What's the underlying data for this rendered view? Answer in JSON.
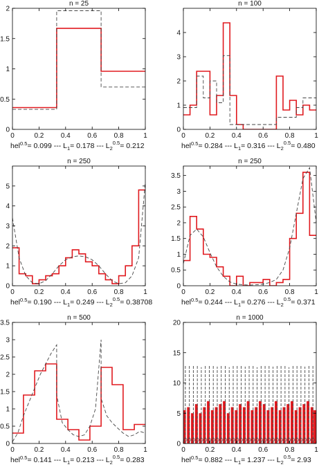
{
  "colors": {
    "histogram": "#e0191e",
    "density": "#444444",
    "axes": "#000000"
  },
  "chart_data": [
    {
      "type": "line",
      "title": "n = 25",
      "caption": {
        "a": "hel",
        "a_sup": "0.5",
        "b": "= 0.099 --- L",
        "b_sub": "1",
        "c": "= 0.178 --- L",
        "c_sub": "2",
        "c_sup": "0.5",
        "d": "= 0.212"
      },
      "xlim": [
        0,
        1
      ],
      "ylim": [
        0,
        2
      ],
      "xticks": [
        0,
        0.2,
        0.4,
        0.6,
        0.8,
        1
      ],
      "xtick_labels": [
        "0",
        "0.2",
        "0.4",
        "0.6",
        "0.8",
        "1"
      ],
      "yticks": [
        0,
        0.5,
        1,
        1.5,
        2
      ],
      "ytick_labels": [
        "0",
        "0.5",
        "1",
        "1.5",
        "2"
      ],
      "series": [
        {
          "style": "histogram-red",
          "x": [
            0,
            0.333,
            0.333,
            0.667,
            0.667,
            1
          ],
          "y": [
            0.36,
            0.36,
            1.67,
            1.67,
            0.96,
            0.96
          ]
        },
        {
          "style": "density-dashed",
          "x": [
            0,
            0.333,
            0.333,
            0.667,
            0.667,
            1
          ],
          "y": [
            0.33,
            0.33,
            1.96,
            1.96,
            0.7,
            0.7
          ]
        }
      ]
    },
    {
      "type": "line",
      "title": "n = 100",
      "caption": {
        "a": "hel",
        "a_sup": "0.5",
        "b": "= 0.284 --- L",
        "b_sub": "1",
        "c": "= 0.316 --- L",
        "c_sub": "2",
        "c_sup": "0.5",
        "d": "= 0.480"
      },
      "xlim": [
        0,
        1
      ],
      "ylim": [
        0,
        5
      ],
      "xticks": [
        0,
        0.2,
        0.4,
        0.6,
        0.8,
        1
      ],
      "xtick_labels": [
        "0",
        "0.2",
        "0.4",
        "0.6",
        "0.8",
        "1"
      ],
      "yticks": [
        0,
        1,
        2,
        3,
        4
      ],
      "ytick_labels": [
        "0",
        "1",
        "2",
        "3",
        "4"
      ],
      "series": [
        {
          "style": "histogram-red",
          "x": [
            0,
            0.05,
            0.05,
            0.1,
            0.1,
            0.2,
            0.2,
            0.25,
            0.25,
            0.3,
            0.3,
            0.35,
            0.35,
            0.4,
            0.4,
            0.45,
            0.45,
            0.7,
            0.7,
            0.75,
            0.75,
            0.8,
            0.8,
            0.85,
            0.85,
            0.9,
            0.9,
            0.95,
            0.95,
            1
          ],
          "y": [
            0.6,
            0.6,
            1.0,
            1.0,
            2.4,
            2.4,
            0.6,
            0.6,
            1.4,
            1.4,
            4.4,
            4.4,
            1.4,
            1.4,
            0.2,
            0.2,
            0.0,
            0.0,
            2.2,
            2.2,
            0.8,
            0.8,
            1.2,
            1.2,
            0.6,
            0.6,
            1.0,
            1.0,
            0.8,
            0.8
          ]
        },
        {
          "style": "density-dashed",
          "x": [
            0,
            0.05,
            0.05,
            0.1,
            0.1,
            0.15,
            0.15,
            0.2,
            0.2,
            0.25,
            0.25,
            0.3,
            0.3,
            0.35,
            0.35,
            0.5,
            0.5,
            0.7,
            0.7,
            0.85,
            0.85,
            0.9,
            0.9,
            1
          ],
          "y": [
            0.9,
            0.9,
            0.9,
            0.9,
            2.2,
            2.2,
            1.3,
            1.3,
            2.0,
            2.0,
            1.1,
            1.1,
            3.05,
            3.05,
            0.2,
            0.2,
            0.2,
            0.2,
            0.5,
            0.5,
            0.9,
            0.9,
            1.3,
            1.3
          ]
        }
      ]
    },
    {
      "type": "line",
      "title": "n = 250",
      "caption": {
        "a": "hel",
        "a_sup": "0.5",
        "b": "= 0.190 --- L",
        "b_sub": "1",
        "c": "= 0.249 --- L",
        "c_sub": "2",
        "c_sup": "0.5",
        "d": "= 0.38708"
      },
      "xlim": [
        0,
        1
      ],
      "ylim": [
        0,
        6
      ],
      "xticks": [
        0,
        0.2,
        0.4,
        0.6,
        0.8,
        1
      ],
      "xtick_labels": [
        "0",
        "0.2",
        "0.4",
        "0.6",
        "0.8",
        "1"
      ],
      "yticks": [
        0,
        1,
        2,
        3,
        4,
        5
      ],
      "ytick_labels": [
        "0",
        "1",
        "2",
        "3",
        "4",
        "5"
      ],
      "series": [
        {
          "style": "histogram-red",
          "x": [
            0,
            0.05,
            0.05,
            0.1,
            0.1,
            0.15,
            0.15,
            0.2,
            0.2,
            0.25,
            0.25,
            0.3,
            0.3,
            0.35,
            0.35,
            0.4,
            0.4,
            0.45,
            0.45,
            0.5,
            0.5,
            0.55,
            0.55,
            0.6,
            0.6,
            0.65,
            0.65,
            0.7,
            0.7,
            0.75,
            0.75,
            0.8,
            0.8,
            0.85,
            0.85,
            0.9,
            0.9,
            0.95,
            0.95,
            1
          ],
          "y": [
            1.9,
            1.9,
            0.6,
            0.6,
            0.5,
            0.5,
            0.1,
            0.1,
            0.3,
            0.3,
            0.5,
            0.5,
            0.6,
            0.6,
            1.0,
            1.0,
            1.4,
            1.4,
            1.8,
            1.8,
            1.6,
            1.6,
            1.2,
            1.2,
            1.0,
            1.0,
            0.6,
            0.6,
            0.3,
            0.3,
            0.1,
            0.1,
            0.5,
            0.5,
            1.0,
            1.0,
            2.0,
            2.0,
            4.8,
            4.8
          ]
        },
        {
          "style": "density-dashed",
          "x": [
            0,
            0.05,
            0.1,
            0.15,
            0.2,
            0.25,
            0.3,
            0.35,
            0.4,
            0.45,
            0.5,
            0.55,
            0.6,
            0.65,
            0.7,
            0.75,
            0.8,
            0.85,
            0.9,
            0.95,
            1
          ],
          "y": [
            3.4,
            1.4,
            0.5,
            0.15,
            0.1,
            0.25,
            0.6,
            1.0,
            1.3,
            1.45,
            1.5,
            1.45,
            1.3,
            1.0,
            0.6,
            0.25,
            0.1,
            0.15,
            0.5,
            1.4,
            5.2
          ]
        }
      ]
    },
    {
      "type": "line",
      "title": "n = 250",
      "caption": {
        "a": "hel",
        "a_sup": "0.5",
        "b": "= 0.244 --- L",
        "b_sub": "1",
        "c": "= 0.276 --- L",
        "c_sub": "2",
        "c_sup": "0.5",
        "d": "= 0.371"
      },
      "xlim": [
        0,
        1
      ],
      "ylim": [
        0,
        3.8
      ],
      "xticks": [
        0,
        0.2,
        0.4,
        0.6,
        0.8,
        1
      ],
      "xtick_labels": [
        "0",
        "0.2",
        "0.4",
        "0.6",
        "0.8",
        "1"
      ],
      "yticks": [
        0,
        0.5,
        1,
        1.5,
        2,
        2.5,
        3,
        3.5
      ],
      "ytick_labels": [
        "0",
        "0.5",
        "1",
        "1.5",
        "2",
        "2.5",
        "3",
        "3.5"
      ],
      "series": [
        {
          "style": "histogram-red",
          "x": [
            0,
            0.05,
            0.05,
            0.1,
            0.1,
            0.15,
            0.15,
            0.2,
            0.2,
            0.25,
            0.25,
            0.3,
            0.3,
            0.35,
            0.35,
            0.4,
            0.4,
            0.45,
            0.45,
            0.5,
            0.5,
            0.55,
            0.55,
            0.6,
            0.6,
            0.65,
            0.65,
            0.7,
            0.7,
            0.75,
            0.75,
            0.8,
            0.8,
            0.85,
            0.85,
            0.9,
            0.9,
            0.95,
            0.95,
            1
          ],
          "y": [
            0.8,
            0.8,
            2.2,
            2.2,
            1.8,
            1.8,
            1.0,
            1.0,
            0.9,
            0.9,
            0.6,
            0.6,
            0.3,
            0.3,
            0.0,
            0.0,
            0.3,
            0.3,
            0.0,
            0.0,
            0.1,
            0.1,
            0.1,
            0.1,
            0.2,
            0.2,
            0.0,
            0.0,
            0.1,
            0.1,
            0.2,
            0.2,
            1.5,
            1.5,
            2.3,
            2.3,
            3.6,
            3.6,
            1.6,
            1.6
          ]
        },
        {
          "style": "density-dashed",
          "x": [
            0,
            0.05,
            0.1,
            0.15,
            0.2,
            0.25,
            0.3,
            0.35,
            0.4,
            0.45,
            0.5,
            0.55,
            0.6,
            0.65,
            0.7,
            0.75,
            0.8,
            0.85,
            0.9,
            0.95,
            1
          ],
          "y": [
            0.7,
            1.6,
            1.8,
            1.55,
            1.05,
            0.6,
            0.3,
            0.12,
            0.05,
            0.03,
            0.02,
            0.03,
            0.05,
            0.1,
            0.2,
            0.5,
            1.2,
            2.3,
            3.4,
            3.75,
            2.0
          ]
        }
      ]
    },
    {
      "type": "line",
      "title": "n = 500",
      "caption": {
        "a": "hel",
        "a_sup": "0.5",
        "b": "= 0.141 --- L",
        "b_sub": "1",
        "c": "= 0.213 --- L",
        "c_sub": "2",
        "c_sup": "0.5",
        "d": "= 0.283"
      },
      "xlim": [
        0,
        1
      ],
      "ylim": [
        0,
        3.5
      ],
      "xticks": [
        0,
        0.2,
        0.4,
        0.6,
        0.8,
        1
      ],
      "xtick_labels": [
        "0",
        "0.2",
        "0.4",
        "0.6",
        "0.8",
        "1"
      ],
      "yticks": [
        0,
        0.5,
        1,
        1.5,
        2,
        2.5,
        3,
        3.5
      ],
      "ytick_labels": [
        "0",
        "0.5",
        "1",
        "1.5",
        "2",
        "2.5",
        "3",
        "3.5"
      ],
      "series": [
        {
          "style": "histogram-red",
          "x": [
            0,
            0.083,
            0.083,
            0.167,
            0.167,
            0.25,
            0.25,
            0.333,
            0.333,
            0.417,
            0.417,
            0.5,
            0.5,
            0.583,
            0.583,
            0.667,
            0.667,
            0.75,
            0.75,
            0.833,
            0.833,
            0.917,
            0.917,
            1
          ],
          "y": [
            0.3,
            0.3,
            1.4,
            1.4,
            2.1,
            2.1,
            2.3,
            2.3,
            0.7,
            0.7,
            0.4,
            0.4,
            0.1,
            0.1,
            0.5,
            0.5,
            2.2,
            2.2,
            1.7,
            1.7,
            0.4,
            0.4,
            0.55,
            0.55
          ]
        },
        {
          "style": "density-dashed",
          "x": [
            0,
            0.04,
            0.083,
            0.125,
            0.167,
            0.21,
            0.25,
            0.29,
            0.333,
            0.333,
            0.375,
            0.417,
            0.458,
            0.5,
            0.542,
            0.583,
            0.625,
            0.667,
            0.667,
            0.71,
            0.75,
            0.79,
            0.833,
            0.875,
            0.917,
            0.958,
            1
          ],
          "y": [
            0.05,
            0.3,
            0.8,
            1.2,
            1.6,
            2.0,
            2.3,
            2.6,
            2.85,
            1.4,
            0.6,
            0.4,
            0.25,
            0.2,
            0.25,
            0.5,
            1.0,
            3.0,
            1.3,
            0.8,
            0.6,
            0.45,
            0.3,
            0.2,
            0.25,
            0.35,
            0.3
          ]
        }
      ]
    },
    {
      "type": "line",
      "title": "n = 1000",
      "caption": {
        "a": "hel",
        "a_sup": "0.5",
        "b": "= 0.882 --- L",
        "b_sub": "1",
        "c": "= 1.237 --- L",
        "c_sub": "2",
        "c_sup": "0.5",
        "d": "= 2.93"
      },
      "xlim": [
        0,
        1
      ],
      "ylim": [
        0,
        20
      ],
      "xticks": [
        0,
        0.2,
        0.4,
        0.6,
        0.8,
        1
      ],
      "xtick_labels": [
        "0",
        "0.2",
        "0.4",
        "0.6",
        "0.8",
        "1"
      ],
      "yticks": [
        0,
        5,
        10,
        15,
        20
      ],
      "ytick_labels": [
        "0",
        "5",
        "10",
        "15",
        "20"
      ],
      "series": [
        {
          "style": "histogram-red-spikes",
          "x": [
            0.008,
            0.038,
            0.068,
            0.098,
            0.128,
            0.158,
            0.188,
            0.218,
            0.248,
            0.278,
            0.308,
            0.338,
            0.368,
            0.398,
            0.428,
            0.458,
            0.488,
            0.518,
            0.548,
            0.578,
            0.608,
            0.638,
            0.668,
            0.698,
            0.728,
            0.758,
            0.788,
            0.818,
            0.848,
            0.878,
            0.908,
            0.938,
            0.968,
            0.99
          ],
          "y": [
            5.5,
            6,
            5,
            6.5,
            5,
            6,
            7,
            5.5,
            6,
            6.5,
            7,
            5,
            6,
            5.5,
            6.5,
            6,
            7,
            5.5,
            6,
            7,
            6.5,
            5.5,
            6,
            7,
            5.5,
            6,
            6.5,
            7,
            5.5,
            6,
            6.5,
            7,
            6,
            5.5
          ]
        },
        {
          "style": "density-dashed-spikes",
          "x": [
            0.015,
            0.045,
            0.075,
            0.105,
            0.135,
            0.165,
            0.195,
            0.225,
            0.255,
            0.285,
            0.315,
            0.345,
            0.375,
            0.405,
            0.435,
            0.465,
            0.495,
            0.525,
            0.555,
            0.585,
            0.615,
            0.645,
            0.675,
            0.705,
            0.735,
            0.765,
            0.795,
            0.825,
            0.855,
            0.885,
            0.915,
            0.945,
            0.975
          ],
          "y": [
            13,
            13,
            12.8,
            13,
            12.6,
            13,
            12.8,
            13,
            12.7,
            13,
            12.9,
            12.6,
            13,
            12.8,
            13,
            12.7,
            12.9,
            13,
            12.6,
            13,
            12.8,
            13,
            12.7,
            12.9,
            13,
            12.8,
            12.6,
            13,
            12.9,
            13,
            12.7,
            13,
            12.8
          ]
        }
      ]
    }
  ]
}
